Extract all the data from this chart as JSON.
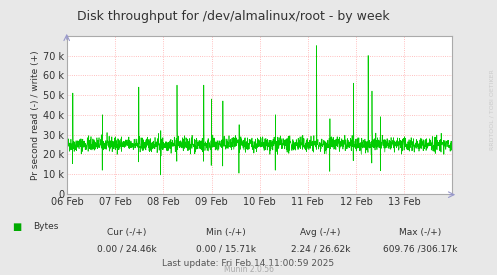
{
  "title": "Disk throughput for /dev/almalinux/root - by week",
  "ylabel": "Pr second read (-) / write (+)",
  "bg_color": "#e8e8e8",
  "plot_bg_color": "#ffffff",
  "grid_color": "#ffaaaa",
  "line_color": "#00cc00",
  "border_color": "#aaaaaa",
  "ylim": [
    0,
    80000
  ],
  "yticks": [
    0,
    10000,
    20000,
    30000,
    40000,
    50000,
    60000,
    70000
  ],
  "ytick_labels": [
    "0",
    "10 k",
    "20 k",
    "30 k",
    "40 k",
    "50 k",
    "60 k",
    "70 k"
  ],
  "xlabel_dates": [
    "06 Feb",
    "07 Feb",
    "08 Feb",
    "09 Feb",
    "10 Feb",
    "11 Feb",
    "12 Feb",
    "13 Feb"
  ],
  "watermark": "RRDTOOL / TOBI OETIKER",
  "last_update": "Last update: Fri Feb 14 11:00:59 2025",
  "munin_version": "Munin 2.0.56",
  "legend_color": "#00aa00",
  "title_fontsize": 9,
  "tick_fontsize": 7,
  "footer_fontsize": 6.5
}
